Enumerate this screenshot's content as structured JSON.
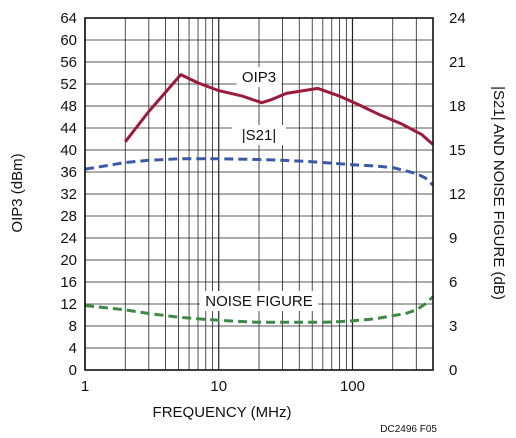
{
  "chart_data": {
    "type": "line",
    "xlabel": "FREQUENCY (MHz)",
    "ylabel_left": "OIP3 (dBm)",
    "ylabel_right": "|S21| AND NOISE FIGURE (dB)",
    "x_scale": "log",
    "xlim": [
      1,
      400
    ],
    "x_ticks": [
      1,
      10,
      100
    ],
    "x_tick_labels": [
      "1",
      "10",
      "100"
    ],
    "ylim_left": [
      0,
      64
    ],
    "y_ticks_left": [
      0,
      4,
      8,
      12,
      16,
      20,
      24,
      28,
      32,
      36,
      40,
      44,
      48,
      52,
      56,
      60,
      64
    ],
    "y_tick_labels_left": [
      "0",
      "4",
      "8",
      "12",
      "16",
      "20",
      "24",
      "28",
      "32",
      "36",
      "40",
      "44",
      "48",
      "52",
      "56",
      "60",
      "64"
    ],
    "ylim_right": [
      0,
      24
    ],
    "y_ticks_right": [
      0,
      3,
      6,
      9,
      12,
      15,
      18,
      21,
      24
    ],
    "y_tick_labels_right": [
      "0",
      "3",
      "6",
      "9",
      "12",
      "15",
      "18",
      "21",
      "24"
    ],
    "grid": true,
    "footnote": "DC2496 F05",
    "series": [
      {
        "name": "OIP3",
        "axis": "left",
        "color": "#9b1b3a",
        "style": "solid",
        "points": [
          [
            2,
            41.5
          ],
          [
            3,
            47
          ],
          [
            5.2,
            53.7
          ],
          [
            7,
            52.2
          ],
          [
            10,
            50.8
          ],
          [
            15,
            49.8
          ],
          [
            21,
            48.6
          ],
          [
            25,
            49.2
          ],
          [
            32,
            50.3
          ],
          [
            55,
            51.2
          ],
          [
            80,
            49.8
          ],
          [
            110,
            48.3
          ],
          [
            160,
            46.4
          ],
          [
            230,
            44.8
          ],
          [
            330,
            42.8
          ],
          [
            400,
            41
          ]
        ]
      },
      {
        "name": "|S21|",
        "axis": "right",
        "color": "#3a5aa8",
        "style": "dashed",
        "points": [
          [
            1,
            13.7
          ],
          [
            1.5,
            13.95
          ],
          [
            2,
            14.15
          ],
          [
            3,
            14.3
          ],
          [
            5,
            14.4
          ],
          [
            10,
            14.4
          ],
          [
            20,
            14.35
          ],
          [
            30,
            14.3
          ],
          [
            50,
            14.2
          ],
          [
            70,
            14.1
          ],
          [
            100,
            14.0
          ],
          [
            150,
            13.9
          ],
          [
            200,
            13.8
          ],
          [
            300,
            13.4
          ],
          [
            350,
            13.1
          ],
          [
            400,
            12.6
          ]
        ]
      },
      {
        "name": "NOISE FIGURE",
        "axis": "right",
        "color": "#3c8a45",
        "style": "dashed",
        "points": [
          [
            1,
            4.4
          ],
          [
            2,
            4.1
          ],
          [
            3,
            3.85
          ],
          [
            5,
            3.6
          ],
          [
            8,
            3.45
          ],
          [
            12,
            3.35
          ],
          [
            20,
            3.25
          ],
          [
            40,
            3.25
          ],
          [
            60,
            3.25
          ],
          [
            80,
            3.3
          ],
          [
            100,
            3.35
          ],
          [
            150,
            3.5
          ],
          [
            200,
            3.7
          ],
          [
            250,
            3.85
          ],
          [
            300,
            4.1
          ],
          [
            350,
            4.5
          ],
          [
            400,
            5.0
          ]
        ]
      }
    ]
  }
}
